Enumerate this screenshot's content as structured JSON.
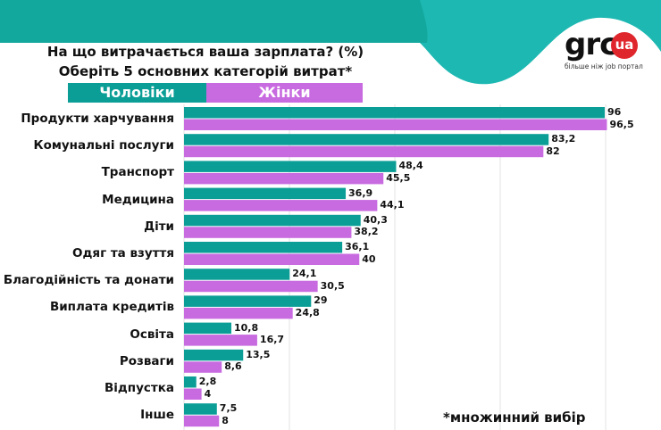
{
  "title_line1": "На що витрачається ваша зарплата? (%)",
  "title_line2": "Оберіть 5 основних категорій витрат*",
  "logo": {
    "name": "grc",
    "badge": "ua",
    "tagline": "більше ніж job портал"
  },
  "colors": {
    "men": "#0b9e96",
    "women": "#c86ae0",
    "header": "#13a89e",
    "header_light": "#1db8b2"
  },
  "footnote": "*множинний вибір",
  "chart_data": {
    "type": "bar",
    "orientation": "horizontal",
    "legend_position": "top",
    "grid": true,
    "categories": [
      "Продукти харчування",
      "Комунальні послуги",
      "Транспорт",
      "Медицина",
      "Діти",
      "Одяг та взуття",
      "Благодійність та донати",
      "Виплата кредитів",
      "Освіта",
      "Розваги",
      "Відпустка",
      "Інше"
    ],
    "series": [
      {
        "name": "Чоловіки",
        "values": [
          96,
          83.2,
          48.4,
          36.9,
          40.3,
          36.1,
          24.1,
          29,
          10.8,
          13.5,
          2.8,
          7.5
        ],
        "labels": [
          "96",
          "83,2",
          "48,4",
          "36,9",
          "40,3",
          "36,1",
          "24,1",
          "29",
          "10,8",
          "13,5",
          "2,8",
          "7,5"
        ]
      },
      {
        "name": "Жінки",
        "values": [
          96.5,
          82,
          45.5,
          44.1,
          38.2,
          40,
          30.5,
          24.8,
          16.7,
          8.6,
          4,
          8
        ],
        "labels": [
          "96,5",
          "82",
          "45,5",
          "44,1",
          "38,2",
          "40",
          "30,5",
          "24,8",
          "16,7",
          "8,6",
          "4",
          "8"
        ]
      }
    ]
  }
}
